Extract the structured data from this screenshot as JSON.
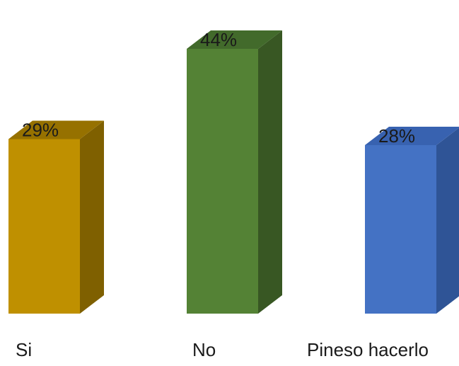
{
  "chart_data": {
    "type": "bar",
    "style": "3d-column",
    "categories": [
      "Si",
      "No",
      "Pineso hacerlo"
    ],
    "values": [
      29,
      44,
      28
    ],
    "value_labels": [
      "29%",
      "44%",
      "28%"
    ],
    "unit": "%",
    "ylim": [
      0,
      50
    ],
    "grid": false,
    "legend": "none",
    "colors": [
      {
        "front": "#BF9000",
        "side": "#7F6000",
        "top": "#967100"
      },
      {
        "front": "#548235",
        "side": "#385723",
        "top": "#426A2B"
      },
      {
        "front": "#4472C4",
        "side": "#2F5496",
        "top": "#3862B0"
      }
    ]
  }
}
